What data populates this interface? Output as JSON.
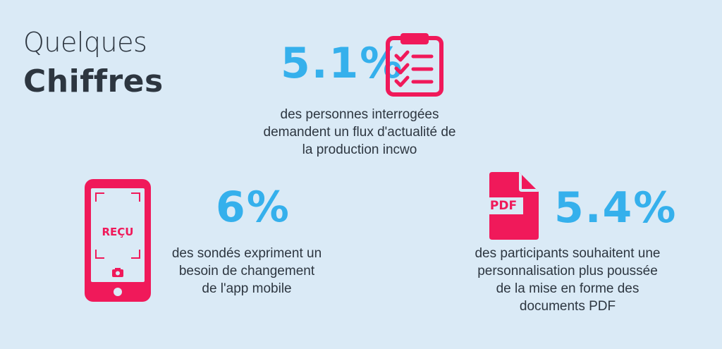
{
  "title": {
    "line1": "Quelques",
    "line2": "Chiffres"
  },
  "colors": {
    "background": "#daeaf6",
    "accent_blue": "#35b0ec",
    "accent_pink": "#f0195a",
    "text": "#2d3640"
  },
  "stats": [
    {
      "value": "5.1%",
      "description": "des personnes interrogées\ndemandent un flux d'actualité de\nla production incwo",
      "icon": "clipboard-checklist-icon"
    },
    {
      "value": "6%",
      "description": "des sondés expriment un\nbesoin de changement\nde l'app mobile",
      "icon": "phone-receipt-scan-icon",
      "icon_label": "REÇU"
    },
    {
      "value": "5.4%",
      "description": "des participants souhaitent une\npersonnalisation plus poussée\nde la mise en forme des\ndocuments PDF",
      "icon": "pdf-document-icon",
      "icon_label": "PDF"
    }
  ]
}
